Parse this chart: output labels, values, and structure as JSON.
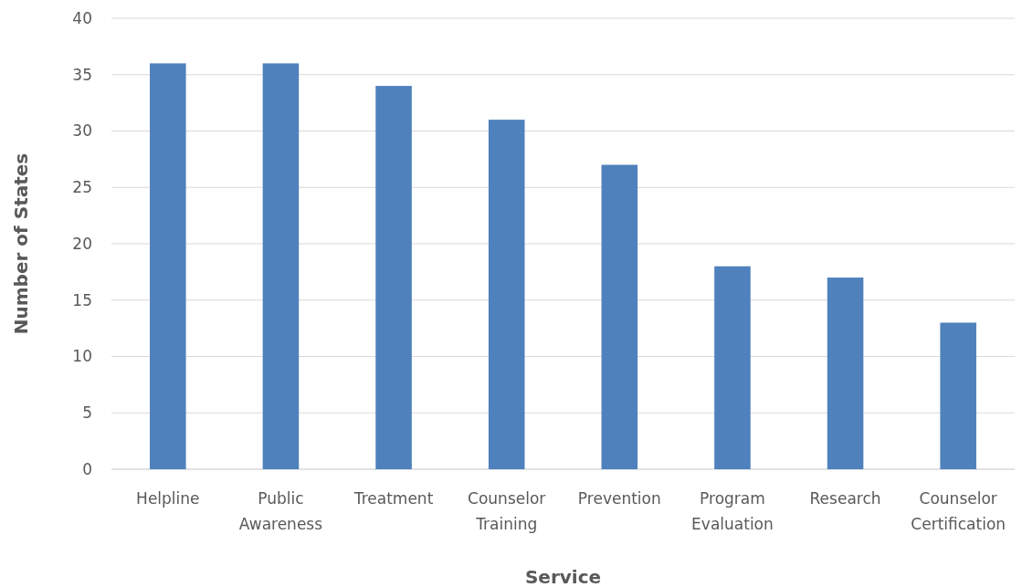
{
  "chart_data": {
    "type": "bar",
    "xlabel": "Service",
    "ylabel": "Number of States",
    "categories": [
      "Helpline",
      "Public Awareness",
      "Treatment",
      "Counselor Training",
      "Prevention",
      "Program Evaluation",
      "Research",
      "Counselor Certification"
    ],
    "values": [
      36,
      36,
      34,
      31,
      27,
      18,
      17,
      13
    ],
    "color": "#4f81bd",
    "ylim": [
      0,
      40
    ],
    "yticks": [
      0,
      5,
      10,
      15,
      20,
      25,
      30,
      35,
      40
    ],
    "grid": "y"
  }
}
